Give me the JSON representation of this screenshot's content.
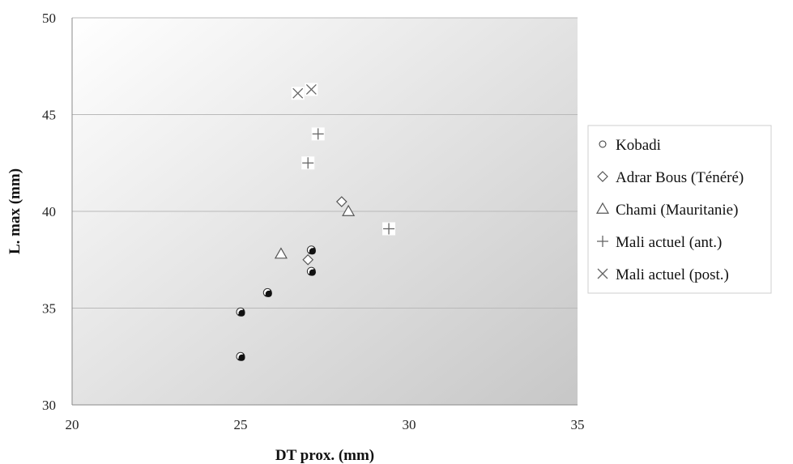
{
  "chart_data": {
    "type": "scatter",
    "xlabel": "DT prox. (mm)",
    "ylabel": "L. max (mm)",
    "xlim": [
      20,
      35
    ],
    "ylim": [
      30,
      50
    ],
    "x_ticks": [
      "20",
      "25",
      "30",
      "35"
    ],
    "y_ticks": [
      "30",
      "35",
      "40",
      "45",
      "50"
    ],
    "grid": "horizontal",
    "legend_position": "right",
    "series": [
      {
        "name": "Kobadi",
        "marker": "circle",
        "color": "#111111",
        "points": [
          [
            25.0,
            34.8
          ],
          [
            25.0,
            32.5
          ],
          [
            25.8,
            35.8
          ],
          [
            27.1,
            38.0
          ],
          [
            27.1,
            36.9
          ]
        ]
      },
      {
        "name": "Adrar Bous (Ténéré)",
        "marker": "diamond",
        "color": "#555555",
        "points": [
          [
            27.0,
            37.5
          ],
          [
            28.0,
            40.5
          ]
        ]
      },
      {
        "name": "Chami (Mauritanie)",
        "marker": "triangle",
        "color": "#555555",
        "points": [
          [
            26.2,
            37.8
          ],
          [
            28.2,
            40.0
          ]
        ]
      },
      {
        "name": "Mali actuel (ant.)",
        "marker": "plus",
        "color": "#666666",
        "points": [
          [
            27.3,
            44.0
          ],
          [
            27.0,
            42.5
          ],
          [
            29.4,
            39.1
          ]
        ]
      },
      {
        "name": "Mali actuel (post.)",
        "marker": "cross",
        "color": "#666666",
        "points": [
          [
            26.7,
            46.1
          ],
          [
            27.1,
            46.3
          ]
        ]
      }
    ]
  }
}
